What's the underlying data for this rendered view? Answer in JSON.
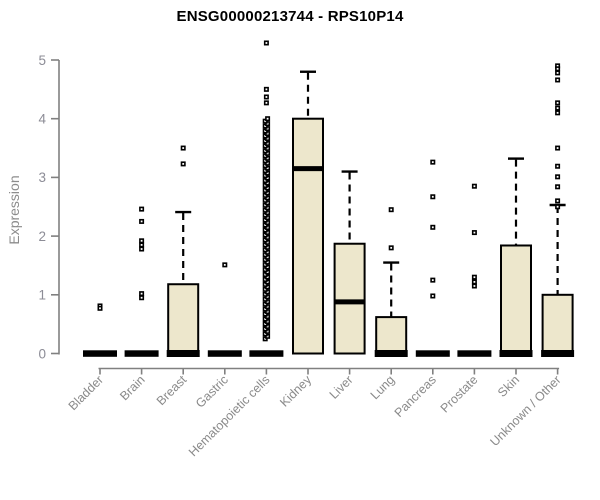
{
  "page": {
    "background": "#ffffff"
  },
  "chart_data": {
    "type": "box",
    "title": "ENSG00000213744 - RPS10P14",
    "ylabel": "Expression",
    "xlabel": "",
    "ylim": [
      0,
      5
    ],
    "yticks": [
      0,
      1,
      2,
      3,
      4,
      5
    ],
    "grid": false,
    "legend": null,
    "categories": [
      "Bladder",
      "Brain",
      "Breast",
      "Gastric",
      "Hematopoietic cells",
      "Kidney",
      "Liver",
      "Lung",
      "Pancreas",
      "Prostate",
      "Skin",
      "Unknown / Other"
    ],
    "boxes": [
      {
        "category": "Bladder",
        "q1": 0,
        "median": 0,
        "q3": 0,
        "whisker_low": 0,
        "whisker_high": 0,
        "outliers": [
          0.81,
          0.77
        ]
      },
      {
        "category": "Brain",
        "q1": 0,
        "median": 0,
        "q3": 0,
        "whisker_low": 0,
        "whisker_high": 0,
        "outliers": [
          2.46,
          2.25,
          1.92,
          1.85,
          1.78,
          1.02,
          0.95
        ]
      },
      {
        "category": "Breast",
        "q1": 0,
        "median": 0,
        "q3": 1.18,
        "whisker_low": 0,
        "whisker_high": 2.41,
        "outliers": [
          3.5,
          3.23
        ]
      },
      {
        "category": "Gastric",
        "q1": 0,
        "median": 0,
        "q3": 0,
        "whisker_low": 0,
        "whisker_high": 0,
        "outliers": [
          1.51
        ]
      },
      {
        "category": "Hematopoietic cells",
        "q1": 0,
        "median": 0,
        "q3": 0,
        "whisker_low": 0,
        "whisker_high": 0,
        "outliers": [
          5.29,
          4.5,
          4.37,
          4.27
        ],
        "outlier_stack": {
          "min": 0.25,
          "max": 4.0,
          "count": 90
        }
      },
      {
        "category": "Kidney",
        "q1": 0,
        "median": 3.15,
        "q3": 4.0,
        "whisker_low": 0,
        "whisker_high": 4.8,
        "outliers": []
      },
      {
        "category": "Liver",
        "q1": 0,
        "median": 0.88,
        "q3": 1.87,
        "whisker_low": 0,
        "whisker_high": 3.1,
        "outliers": []
      },
      {
        "category": "Lung",
        "q1": 0,
        "median": 0,
        "q3": 0.62,
        "whisker_low": 0,
        "whisker_high": 1.55,
        "outliers": [
          2.45,
          1.8
        ]
      },
      {
        "category": "Pancreas",
        "q1": 0,
        "median": 0,
        "q3": 0,
        "whisker_low": 0,
        "whisker_high": 0,
        "outliers": [
          3.26,
          2.67,
          2.15,
          1.25,
          0.98
        ]
      },
      {
        "category": "Prostate",
        "q1": 0,
        "median": 0,
        "q3": 0,
        "whisker_low": 0,
        "whisker_high": 0,
        "outliers": [
          2.85,
          2.06,
          1.3,
          1.22,
          1.15
        ]
      },
      {
        "category": "Skin",
        "q1": 0,
        "median": 0,
        "q3": 1.84,
        "whisker_low": 0,
        "whisker_high": 3.32,
        "outliers": []
      },
      {
        "category": "Unknown / Other",
        "q1": 0,
        "median": 0,
        "q3": 1.0,
        "whisker_low": 0,
        "whisker_high": 2.53,
        "outliers": [
          4.9,
          4.85,
          4.78,
          4.66,
          4.27,
          4.18,
          4.1,
          3.5,
          3.19,
          3.01,
          2.84,
          2.6,
          2.5
        ]
      }
    ],
    "colors": {
      "box_fill": "#EDE7CC",
      "box_border": "#000000",
      "median": "#000000",
      "axis": "#808080",
      "tick_label": "#8C8C96",
      "category_label": "#8A8A8A",
      "title": "#000000",
      "outlier": "#000000"
    }
  }
}
